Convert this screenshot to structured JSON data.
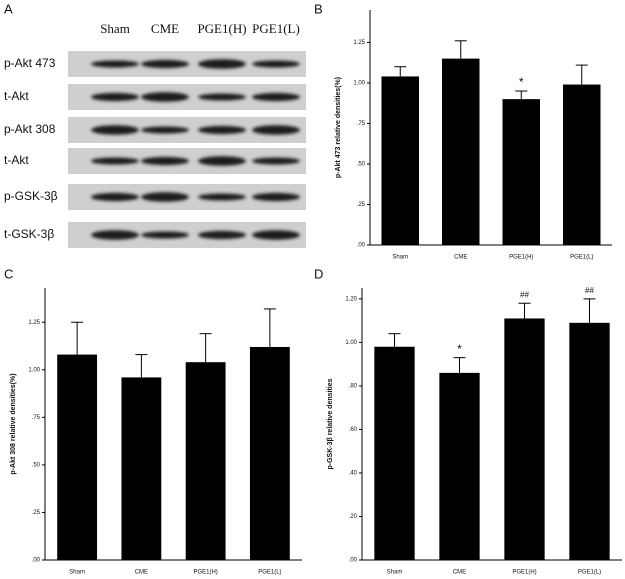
{
  "blot": {
    "panel": "A",
    "lanes": [
      "Sham",
      "CME",
      "PGE1(H)",
      "PGE1(L)"
    ],
    "rows": [
      "p-Akt 473",
      "t-Akt",
      "p-Akt 308",
      "t-Akt",
      "p-GSK-3β",
      "t-GSK-3β"
    ]
  },
  "chart_data": [
    {
      "type": "bar",
      "panel": "B",
      "y_label": "p-Akt 473 relative densities(%)",
      "categories": [
        "Sham",
        "CME",
        "PGE1(H)",
        "PGE1(L)"
      ],
      "series": [
        {
          "color": "#000000",
          "values": [
            1.04,
            1.15,
            0.9,
            0.99
          ],
          "errors": [
            0.06,
            0.11,
            0.05,
            0.12
          ]
        }
      ],
      "ylim": [
        0,
        1.45
      ],
      "yticks": [
        {
          "value": 0,
          "label": ".00"
        },
        {
          "value": 0.25,
          "label": ".25"
        },
        {
          "value": 0.5,
          "label": ".50"
        },
        {
          "value": 0.75,
          "label": ".75"
        },
        {
          "value": 1,
          "label": "1.00"
        },
        {
          "value": 1.25,
          "label": "1.25"
        }
      ],
      "annotations": [
        {
          "text": "*",
          "category": "PGE1(H)"
        }
      ]
    },
    {
      "type": "bar",
      "panel": "C",
      "y_label": "p-Akt 308 relative densities(%)",
      "categories": [
        "Sham",
        "CME",
        "PGE1(H)",
        "PGE1(L)"
      ],
      "series": [
        {
          "color": "#000000",
          "values": [
            1.08,
            0.96,
            1.04,
            1.12
          ],
          "errors": [
            0.17,
            0.12,
            0.15,
            0.2
          ]
        }
      ],
      "ylim": [
        0,
        1.43
      ],
      "yticks": [
        {
          "value": 0,
          "label": ".00"
        },
        {
          "value": 0.25,
          "label": ".25"
        },
        {
          "value": 0.5,
          "label": ".50"
        },
        {
          "value": 0.75,
          "label": ".75"
        },
        {
          "value": 1,
          "label": "1.00"
        },
        {
          "value": 1.25,
          "label": "1.25"
        }
      ]
    },
    {
      "type": "bar",
      "panel": "D",
      "y_label": "p-GSK-3β relative densities",
      "categories": [
        "Sham",
        "CME",
        "PGE1(H)",
        "PGE1(L)"
      ],
      "series": [
        {
          "color": "#000000",
          "values": [
            0.98,
            0.86,
            1.11,
            1.09
          ],
          "errors": [
            0.06,
            0.07,
            0.07,
            0.11
          ]
        }
      ],
      "ylim": [
        0,
        1.25
      ],
      "yticks": [
        {
          "value": 0,
          "label": ".00"
        },
        {
          "value": 0.2,
          "label": ".20"
        },
        {
          "value": 0.4,
          "label": ".40"
        },
        {
          "value": 0.6,
          "label": ".60"
        },
        {
          "value": 0.8,
          "label": ".80"
        },
        {
          "value": 1,
          "label": "1.00"
        },
        {
          "value": 1.2,
          "label": "1.20"
        }
      ],
      "annotations": [
        {
          "text": "*",
          "category": "CME"
        },
        {
          "text": "##",
          "category": "PGE1(H)"
        },
        {
          "text": "##",
          "category": "PGE1(L)"
        }
      ]
    }
  ]
}
